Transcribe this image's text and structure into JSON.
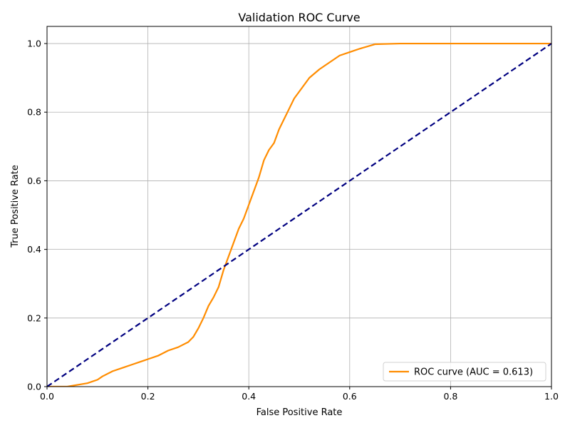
{
  "chart_data": {
    "type": "line",
    "title": "Validation ROC Curve",
    "xlabel": "False Positive Rate",
    "ylabel": "True Positive Rate",
    "xlim": [
      0.0,
      1.0
    ],
    "ylim": [
      0.0,
      1.05
    ],
    "xticks": [
      "0.0",
      "0.2",
      "0.4",
      "0.6",
      "0.8",
      "1.0"
    ],
    "yticks": [
      "0.0",
      "0.2",
      "0.4",
      "0.6",
      "0.8",
      "1.0"
    ],
    "grid": true,
    "legend_position": "lower-right",
    "series": [
      {
        "name": "ROC curve (AUC = 0.613)",
        "color": "#ff8c00",
        "style": "solid",
        "x": [
          0.0,
          0.04,
          0.06,
          0.08,
          0.1,
          0.11,
          0.13,
          0.15,
          0.17,
          0.19,
          0.2,
          0.22,
          0.24,
          0.26,
          0.28,
          0.29,
          0.3,
          0.31,
          0.32,
          0.33,
          0.34,
          0.35,
          0.36,
          0.37,
          0.38,
          0.39,
          0.4,
          0.41,
          0.42,
          0.43,
          0.44,
          0.45,
          0.46,
          0.47,
          0.48,
          0.49,
          0.5,
          0.52,
          0.54,
          0.56,
          0.58,
          0.6,
          0.62,
          0.65,
          0.7,
          0.8,
          1.0
        ],
        "y": [
          0.0,
          0.0,
          0.005,
          0.01,
          0.02,
          0.03,
          0.045,
          0.055,
          0.065,
          0.075,
          0.08,
          0.09,
          0.105,
          0.115,
          0.13,
          0.145,
          0.17,
          0.2,
          0.235,
          0.26,
          0.29,
          0.34,
          0.38,
          0.42,
          0.46,
          0.49,
          0.53,
          0.57,
          0.61,
          0.66,
          0.69,
          0.71,
          0.75,
          0.78,
          0.81,
          0.84,
          0.86,
          0.9,
          0.925,
          0.945,
          0.965,
          0.975,
          0.985,
          0.998,
          1.0,
          1.0,
          1.0
        ]
      },
      {
        "name": "",
        "color": "#000080",
        "style": "dashed",
        "x": [
          0.0,
          1.0
        ],
        "y": [
          0.0,
          1.0
        ]
      }
    ]
  }
}
